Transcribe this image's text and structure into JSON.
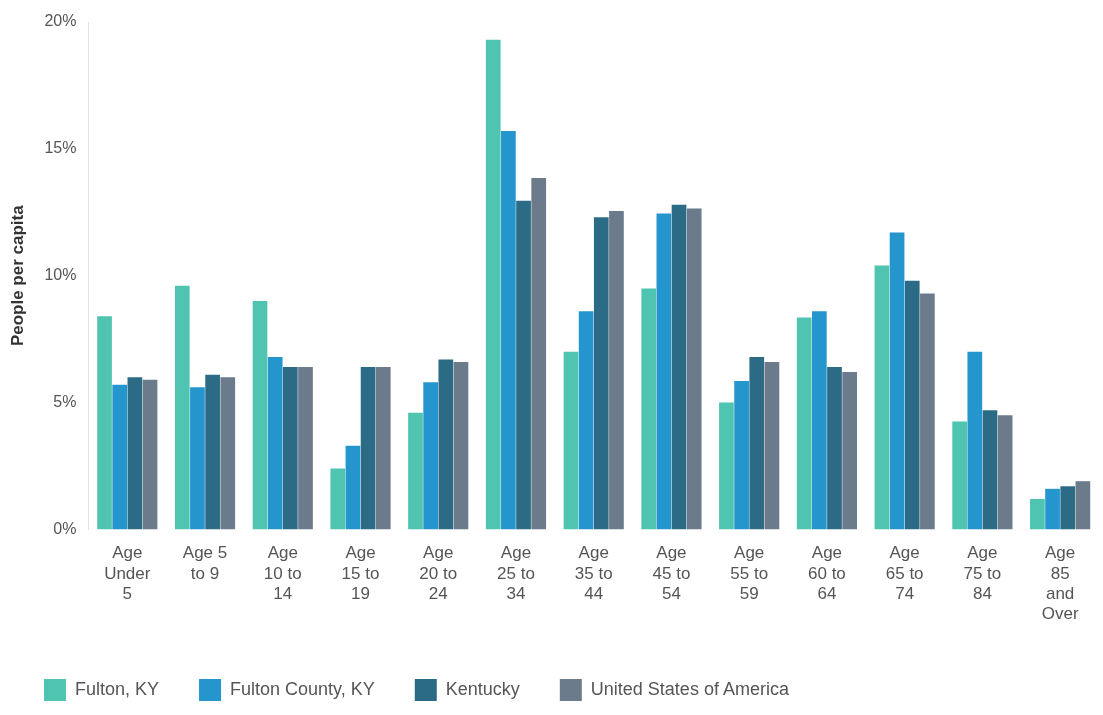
{
  "chart_data": {
    "type": "bar",
    "ylabel": "People per capita",
    "categories": [
      "Age Under 5",
      "Age 5 to 9",
      "Age 10 to 14",
      "Age 15 to 19",
      "Age 20 to 24",
      "Age 25 to 34",
      "Age 35 to 44",
      "Age 45 to 54",
      "Age 55 to 59",
      "Age 60 to 64",
      "Age 65 to 74",
      "Age 75 to 84",
      "Age 85 and Over"
    ],
    "series": [
      {
        "name": "Fulton, KY",
        "color": "#4fc4b0",
        "values": [
          8.4,
          9.6,
          9.0,
          2.4,
          4.6,
          19.3,
          7.0,
          9.5,
          5.0,
          8.35,
          10.4,
          4.25,
          1.2
        ]
      },
      {
        "name": "Fulton County, KY",
        "color": "#2496cd",
        "values": [
          5.7,
          5.6,
          6.8,
          3.3,
          5.8,
          15.7,
          8.6,
          12.45,
          5.85,
          8.6,
          11.7,
          7.0,
          1.6
        ]
      },
      {
        "name": "Kentucky",
        "color": "#2c6b85",
        "values": [
          6.0,
          6.1,
          6.4,
          6.4,
          6.7,
          12.95,
          12.3,
          12.8,
          6.8,
          6.4,
          9.8,
          4.7,
          1.7
        ]
      },
      {
        "name": "United States of America",
        "color": "#6b7b8c",
        "values": [
          5.9,
          6.0,
          6.4,
          6.4,
          6.6,
          13.85,
          12.55,
          12.65,
          6.6,
          6.2,
          9.3,
          4.5,
          1.9
        ]
      }
    ],
    "ylim": [
      0,
      20
    ],
    "yticks": [
      {
        "value": 0,
        "label": "0%"
      },
      {
        "value": 5,
        "label": "5%"
      },
      {
        "value": 10,
        "label": "10%"
      },
      {
        "value": 15,
        "label": "15%"
      },
      {
        "value": 20,
        "label": "20%"
      }
    ],
    "grid": false,
    "legend": "bottom left"
  }
}
